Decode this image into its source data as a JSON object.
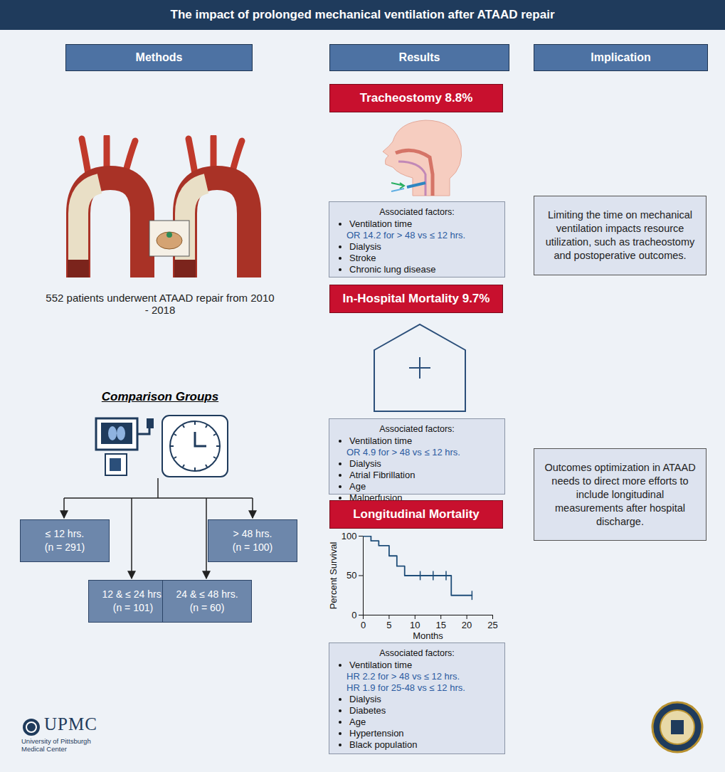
{
  "header": {
    "title": "The impact of prolonged mechanical ventilation after ATAAD repair"
  },
  "columns": [
    "Methods",
    "Results",
    "Implication"
  ],
  "methods": {
    "description": "552 patients underwent ATAAD repair from 2010 - 2018",
    "comparison_title": "Comparison Groups",
    "groups": [
      {
        "label": "≤ 12 hrs.",
        "n": "(n = 291)"
      },
      {
        "label": "12 & ≤ 24 hrs.",
        "n": "(n = 101)"
      },
      {
        "label": "24 & ≤ 48 hrs.",
        "n": "(n = 60)"
      },
      {
        "label": "> 48 hrs.",
        "n": "(n = 100)"
      }
    ]
  },
  "results": [
    {
      "title": "Tracheostomy 8.8%",
      "factors_heading": "Associated factors:",
      "factors": [
        {
          "label": "Ventilation time",
          "details": [
            "OR 14.2 for > 48 vs ≤ 12 hrs."
          ]
        },
        {
          "label": "Dialysis"
        },
        {
          "label": "Stroke"
        },
        {
          "label": "Chronic lung disease"
        }
      ]
    },
    {
      "title": "In-Hospital Mortality 9.7%",
      "factors_heading": "Associated factors:",
      "factors": [
        {
          "label": "Ventilation time",
          "details": [
            "OR 4.9 for > 48 vs ≤ 12 hrs."
          ]
        },
        {
          "label": "Dialysis"
        },
        {
          "label": "Atrial Fibrillation"
        },
        {
          "label": "Age"
        },
        {
          "label": "Malperfusion"
        }
      ]
    },
    {
      "title": "Longitudinal Mortality",
      "factors_heading": "Associated factors:",
      "factors": [
        {
          "label": "Ventilation time",
          "details": [
            "HR 2.2 for > 48 vs ≤ 12 hrs.",
            "HR 1.9 for 25-48 vs ≤ 12 hrs."
          ]
        },
        {
          "label": "Dialysis"
        },
        {
          "label": "Diabetes"
        },
        {
          "label": "Age"
        },
        {
          "label": "Hypertension"
        },
        {
          "label": "Black population"
        }
      ]
    }
  ],
  "implication": [
    "Limiting the time on mechanical ventilation impacts resource utilization, such as tracheostomy and postoperative outcomes.",
    "Outcomes optimization in ATAAD needs to direct more efforts to include longitudinal measurements after hospital discharge."
  ],
  "logo": {
    "name": "UPMC",
    "subtitle": [
      "University of Pittsburgh",
      "Medical Center"
    ]
  },
  "chart_data": {
    "type": "line",
    "line_style": "step",
    "color": "#1f4e79",
    "x": [
      0,
      1.5,
      3,
      5,
      6.5,
      8,
      17,
      21
    ],
    "values": [
      100,
      94,
      88,
      75,
      62,
      50,
      25,
      25
    ],
    "censored": {
      "x": [
        11,
        13.5,
        16,
        21
      ],
      "values": [
        50,
        50,
        50,
        25
      ]
    },
    "xlabel": "Months",
    "ylabel": "Percent Survival",
    "xlim": [
      0,
      25
    ],
    "xticks": [
      0,
      5,
      10,
      15,
      20,
      25
    ],
    "ylim": [
      0,
      100
    ],
    "yticks": [
      0,
      50,
      100
    ]
  }
}
